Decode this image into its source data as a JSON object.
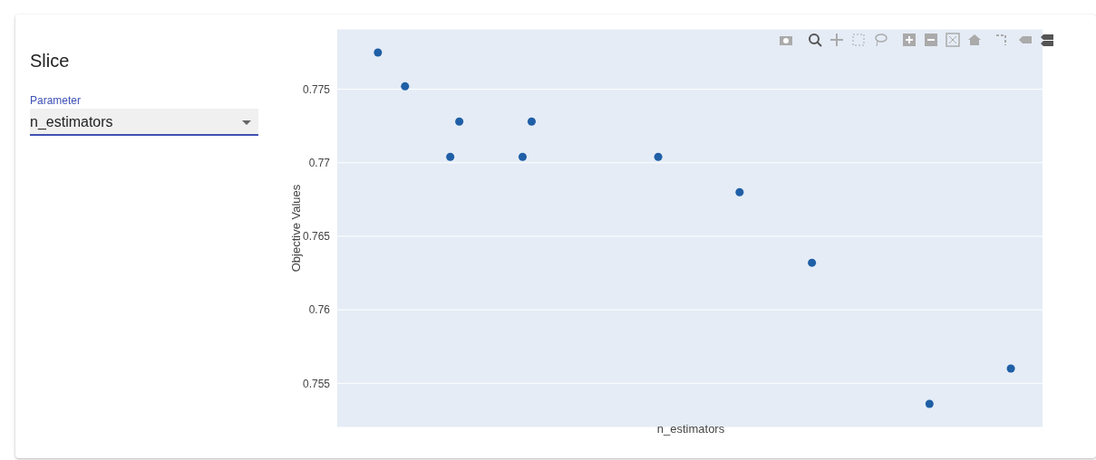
{
  "chart_data": {
    "type": "scatter",
    "title": "Slice",
    "annotations": [
      "Parameter",
      "n_estimators"
    ],
    "xlabel": "n_estimators",
    "ylabel": "Objective Values",
    "categories": [
      null,
      null,
      null,
      null,
      null,
      null,
      null,
      null,
      null,
      null,
      null,
      null,
      null,
      null,
      null,
      null,
      null,
      null,
      null,
      null,
      null,
      null,
      null,
      null,
      null,
      null,
      null,
      null,
      null,
      null,
      null,
      null,
      null,
      null,
      null,
      null,
      null,
      null,
      null,
      null,
      null,
      null,
      null,
      null,
      null,
      null,
      null,
      null,
      null,
      null,
      null,
      null,
      null,
      null,
      null,
      null,
      null,
      null,
      null,
      null,
      null,
      null,
      null,
      null,
      null,
      null,
      null,
      null,
      null,
      null,
      null,
      null,
      null,
      null,
      null,
      null,
      null,
      null
    ],
    "series": [
      {
        "color": "#1f5fa6",
        "values": [
          null,
          null,
          null,
          null,
          0.7775,
          null,
          null,
          0.7752,
          null,
          null,
          null,
          null,
          0.7704,
          0.7728,
          null,
          null,
          null,
          null,
          null,
          null,
          0.7704,
          0.7728,
          null,
          null,
          null,
          null,
          null,
          null,
          null,
          null,
          null,
          null,
          null,
          null,
          null,
          0.7704,
          null,
          null,
          null,
          null,
          null,
          null,
          null,
          null,
          0.768,
          null,
          null,
          null,
          null,
          null,
          null,
          null,
          0.7632,
          null,
          null,
          null,
          null,
          null,
          null,
          null,
          null,
          null,
          null,
          null,
          null,
          0.7536,
          null,
          null,
          null,
          null,
          null,
          null,
          null,
          null,
          0.756,
          null,
          null,
          null
        ]
      }
    ],
    "ylim": [
      0.752,
      0.7791
    ],
    "yticks": [
      0.755,
      0.76,
      0.765,
      0.77,
      0.775
    ],
    "grid": "y",
    "marker": "circle",
    "legend": false
  }
}
